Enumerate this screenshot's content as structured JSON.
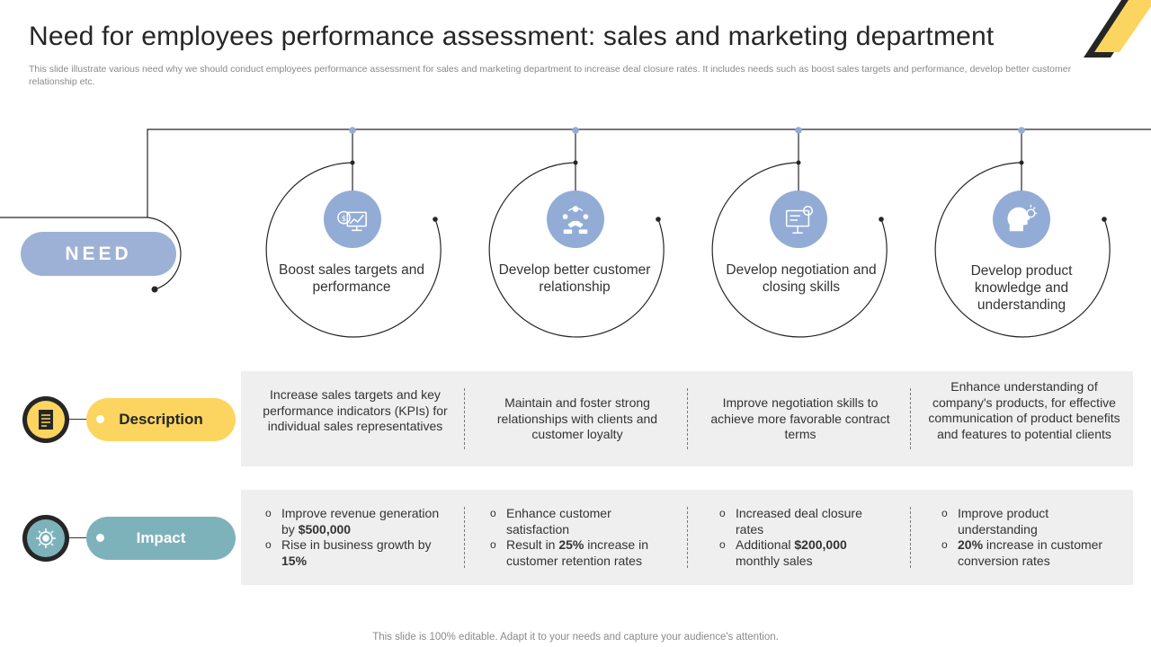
{
  "title": "Need for employees performance assessment: sales and marketing department",
  "subtitle": "This slide illustrate various need why we should conduct employees performance assessment for sales and marketing department to increase deal closure rates. It includes needs such as boost sales targets and performance, develop better customer relationship etc.",
  "need_label": "NEED",
  "needs": [
    {
      "label": "Boost sales targets and performance",
      "icon": "sales-target-icon"
    },
    {
      "label": "Develop better customer relationship",
      "icon": "customer-relationship-icon"
    },
    {
      "label": "Develop negotiation and closing skills",
      "icon": "negotiation-icon"
    },
    {
      "label": "Develop product knowledge and understanding",
      "icon": "product-knowledge-icon"
    }
  ],
  "description": {
    "label": "Description",
    "icon": "document-icon",
    "color": "#fbd55f",
    "items": [
      "Increase sales targets and key performance indicators (KPIs) for individual sales representatives",
      "Maintain and foster strong relationships with clients and customer loyalty",
      "Improve negotiation skills to achieve more favorable contract terms",
      "Enhance understanding of company's products, for effective communication of product benefits and features to potential clients"
    ]
  },
  "impact": {
    "label": "Impact",
    "icon": "target-icon",
    "color": "#7eb2bb",
    "items": [
      [
        {
          "pre": "Improve revenue generation by ",
          "bold": "$500,000",
          "post": ""
        },
        {
          "pre": "Rise in business growth by ",
          "bold": "15%",
          "post": ""
        }
      ],
      [
        {
          "pre": "Enhance customer satisfaction",
          "bold": "",
          "post": ""
        },
        {
          "pre": "Result in ",
          "bold": "25%",
          "post": " increase in customer retention rates"
        }
      ],
      [
        {
          "pre": "Increased deal closure rates",
          "bold": "",
          "post": ""
        },
        {
          "pre": "Additional ",
          "bold": "$200,000",
          "post": " monthly sales"
        }
      ],
      [
        {
          "pre": "Improve product understanding",
          "bold": "",
          "post": ""
        },
        {
          "pre": "",
          "bold": "20%",
          "post": " increase in customer conversion rates"
        }
      ]
    ]
  },
  "footer": "This slide is 100% editable. Adapt it to your needs and capture your audience's attention.",
  "colors": {
    "need_blue": "#9db1d6",
    "icon_blue": "#93acd6",
    "accent_yellow": "#fbd55f",
    "accent_teal": "#7eb2bb",
    "band_gray": "#efefef"
  }
}
